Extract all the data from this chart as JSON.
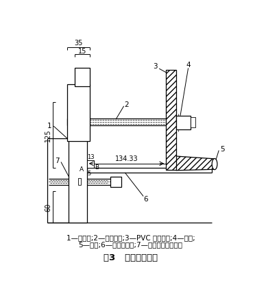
{
  "title": "图3   导管修整工装",
  "caption_line1": "1—夹具体;2—紧固螺杆;3—PVC 导管压板;4—螺母;",
  "caption_line2": "5—导管;6—导管定位板;7—定位板压紧螺钉。",
  "dim_35": "35",
  "dim_15": "15",
  "dim_134_33": "134.33",
  "dim_125": "125",
  "dim_60": "60",
  "dim_13": "13",
  "dim_5": "5",
  "label_1": "1",
  "label_2": "2",
  "label_3": "3",
  "label_4": "4",
  "label_5": "5",
  "label_6": "6",
  "label_7": "7",
  "label_A": "A",
  "label_B": "B"
}
